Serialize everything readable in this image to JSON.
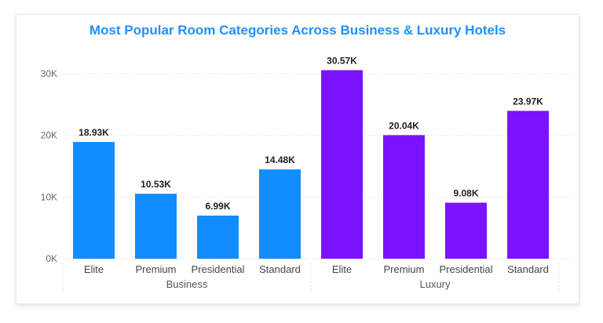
{
  "chart_data": {
    "type": "bar",
    "title": "Most Popular Room Categories Across Business & Luxury Hotels",
    "xlabel": "",
    "ylabel": "",
    "ylim": [
      0,
      30000
    ],
    "yticks": [
      {
        "value": 0,
        "label": "0K"
      },
      {
        "value": 10000,
        "label": "10K"
      },
      {
        "value": 20000,
        "label": "20K"
      },
      {
        "value": 30000,
        "label": "30K"
      }
    ],
    "grid": true,
    "groups": [
      {
        "name": "Business",
        "color": "#118dff",
        "categories": [
          "Elite",
          "Premium",
          "Presidential",
          "Standard"
        ],
        "values": [
          18930,
          10530,
          6990,
          14480
        ],
        "labels": [
          "18.93K",
          "10.53K",
          "6.99K",
          "14.48K"
        ]
      },
      {
        "name": "Luxury",
        "color": "#7b12ff",
        "categories": [
          "Elite",
          "Premium",
          "Presidential",
          "Standard"
        ],
        "values": [
          30570,
          20040,
          9080,
          23970
        ],
        "labels": [
          "30.57K",
          "20.04K",
          "9.08K",
          "23.97K"
        ]
      }
    ]
  }
}
